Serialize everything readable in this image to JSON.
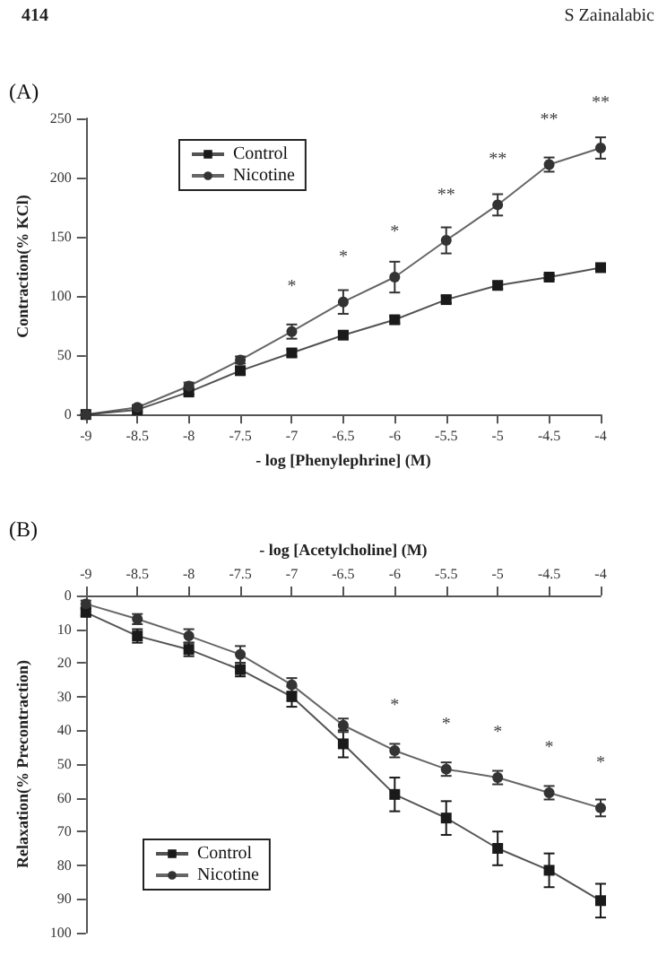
{
  "chart_data": [
    {
      "type": "line",
      "title": "(A)",
      "xlabel": "- log [Phenylephrine] (M)",
      "ylabel": "Contraction(% KCl)",
      "x": [
        -9,
        -8.5,
        -8,
        -7.5,
        -7,
        -6.5,
        -6,
        -5.5,
        -5,
        -4.5,
        -4
      ],
      "series": [
        {
          "name": "Control",
          "color": "#1a1a1a",
          "marker": "square",
          "values": [
            0,
            4,
            19,
            37,
            52,
            67,
            80,
            97,
            109,
            116,
            124
          ],
          "errors": [
            0,
            2,
            2,
            3,
            3,
            3,
            3,
            3,
            3,
            2,
            3
          ]
        },
        {
          "name": "Nicotine",
          "color": "#333333",
          "marker": "circle",
          "values": [
            0,
            6,
            24,
            46,
            70,
            95,
            116,
            147,
            177,
            211,
            225
          ],
          "errors": [
            0,
            2,
            3,
            3,
            6,
            10,
            13,
            11,
            9,
            6,
            9
          ]
        }
      ],
      "xlim": [
        -9,
        -4
      ],
      "xticks": [
        -9,
        -8.5,
        -8,
        -7.5,
        -7,
        -6.5,
        -6,
        -5.5,
        -5,
        -4.5,
        -4
      ],
      "ylim": [
        0,
        250
      ],
      "yticks": [
        0,
        50,
        100,
        150,
        200,
        250
      ],
      "grid": false,
      "legend": "top left",
      "line_style": "solid",
      "annotations": [
        "414",
        "S Zainalabic",
        {
          "text": "*",
          "x": -7,
          "y": 70
        },
        {
          "text": "*",
          "x": -6.5,
          "y": 95
        },
        {
          "text": "*",
          "x": -6,
          "y": 116
        },
        {
          "text": "**",
          "x": -5.5,
          "y": 147
        },
        {
          "text": "**",
          "x": -5,
          "y": 177
        },
        {
          "text": "**",
          "x": -4.5,
          "y": 211
        },
        {
          "text": "**",
          "x": -4,
          "y": 225
        }
      ]
    },
    {
      "type": "line",
      "title": "(B)",
      "xlabel": "- log [Acetylcholine] (M)",
      "ylabel": "Relaxation(% Precontraction)",
      "x": [
        -9,
        -8.5,
        -8,
        -7.5,
        -7,
        -6.5,
        -6,
        -5.5,
        -5,
        -4.5,
        -4
      ],
      "series": [
        {
          "name": "Control",
          "color": "#1a1a1a",
          "marker": "square",
          "values": [
            5,
            12,
            16,
            22,
            30,
            44,
            59,
            66,
            75,
            81.5,
            90.5
          ],
          "errors": [
            1,
            2,
            2,
            2,
            3,
            4,
            5,
            5,
            5,
            5,
            5
          ]
        },
        {
          "name": "Nicotine",
          "color": "#333333",
          "marker": "circle",
          "values": [
            2.5,
            7,
            12,
            17.5,
            26.5,
            38.5,
            46,
            51.5,
            54,
            58.5,
            63
          ],
          "errors": [
            1,
            1.5,
            2,
            2.5,
            2,
            2,
            2,
            2,
            2,
            2,
            2.5
          ]
        }
      ],
      "xlim": [
        -9,
        -4
      ],
      "xticks": [
        -9,
        -8.5,
        -8,
        -7.5,
        -7,
        -6.5,
        -6,
        -5.5,
        -5,
        -4.5,
        -4
      ],
      "ylim": [
        100,
        0
      ],
      "yticks": [
        0,
        10,
        20,
        30,
        40,
        50,
        60,
        70,
        80,
        90,
        100
      ],
      "grid": false,
      "legend": "bottom left",
      "line_style": "solid",
      "annotations": [
        {
          "text": "*",
          "x": -6,
          "y": 46
        },
        {
          "text": "*",
          "x": -5.5,
          "y": 51.5
        },
        {
          "text": "*",
          "x": -5,
          "y": 54
        },
        {
          "text": "*",
          "x": -4.5,
          "y": 58.5
        },
        {
          "text": "*",
          "x": -4,
          "y": 63
        }
      ]
    }
  ]
}
